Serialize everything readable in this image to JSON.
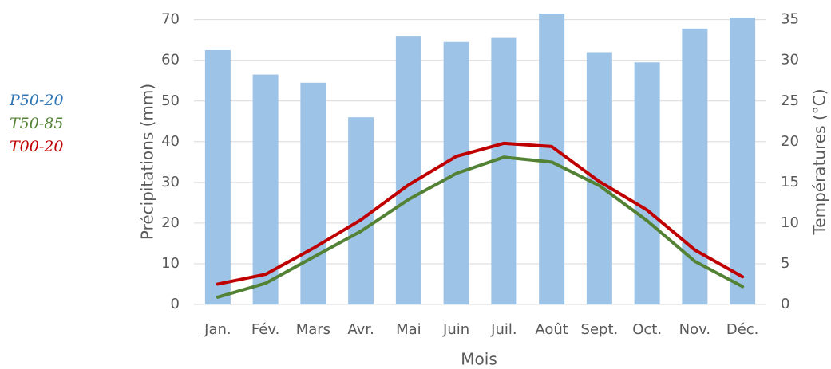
{
  "chart_data": {
    "type": "bar-line",
    "categories": [
      "Jan.",
      "Fév.",
      "Mars",
      "Avr.",
      "Mai",
      "Juin",
      "Juil.",
      "Août",
      "Sept.",
      "Oct.",
      "Nov.",
      "Déc."
    ],
    "series": [
      {
        "name": "P50-20",
        "type": "bar",
        "axis": "y",
        "color": "#9dc3e6",
        "label_color": "#2e75b6",
        "values": [
          62.5,
          56.5,
          54.5,
          46,
          66,
          64.5,
          65.5,
          71.5,
          62,
          59.5,
          67.8,
          70.5
        ]
      },
      {
        "name": "T50-85",
        "type": "line",
        "axis": "y2",
        "color": "#548235",
        "label_color": "#548235",
        "values": [
          0.9,
          2.6,
          5.8,
          9.0,
          12.9,
          16.1,
          18.1,
          17.5,
          14.6,
          10.3,
          5.3,
          2.2
        ]
      },
      {
        "name": "T00-20",
        "type": "line",
        "axis": "y2",
        "color": "#c00000",
        "label_color": "#c00000",
        "values": [
          2.5,
          3.7,
          6.9,
          10.4,
          14.7,
          18.2,
          19.8,
          19.4,
          15.1,
          11.6,
          6.7,
          3.4
        ]
      }
    ],
    "ylabel": "Précipitations (mm)",
    "y2label": "Températures (°C)",
    "xlabel": "Mois",
    "ylim": [
      0,
      71.5
    ],
    "yticks": [
      0,
      10,
      20,
      30,
      40,
      50,
      60,
      70
    ],
    "y2lim": [
      0,
      35.75
    ],
    "y2ticks": [
      0,
      5,
      10,
      15,
      20,
      25,
      30,
      35
    ],
    "grid": true,
    "legend": "left"
  }
}
